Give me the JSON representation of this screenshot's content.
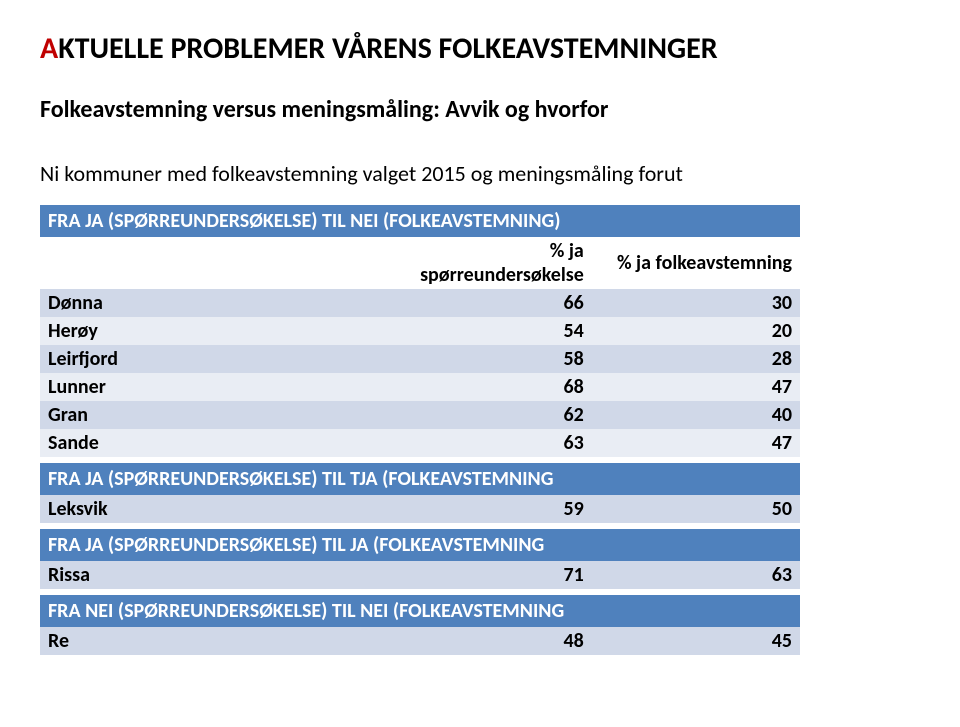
{
  "title_first_letter": "A",
  "title_rest": "KTUELLE PROBLEMER VÅRENS FOLKEAVSTEMNINGER",
  "subtitle": "Folkeavstemning versus meningsmåling: Avvik og hvorfor",
  "intro": "Ni kommuner med folkeavstemning valget 2015 og meningsmåling forut",
  "col1_label": "% ja spørreundersøkelse",
  "col2_label": "% ja folkeavstemning",
  "section1": {
    "header": "FRA JA (SPØRREUNDERSØKELSE) TIL NEI (FOLKEAVSTEMNING)",
    "rows": [
      {
        "label": "Dønna",
        "v1": "66",
        "v2": "30",
        "shade": "light"
      },
      {
        "label": "Herøy",
        "v1": "54",
        "v2": "20",
        "shade": "dark"
      },
      {
        "label": "Leirfjord",
        "v1": "58",
        "v2": "28",
        "shade": "light"
      },
      {
        "label": "Lunner",
        "v1": "68",
        "v2": "47",
        "shade": "dark"
      },
      {
        "label": "Gran",
        "v1": "62",
        "v2": "40",
        "shade": "light"
      },
      {
        "label": "Sande",
        "v1": "63",
        "v2": "47",
        "shade": "dark"
      }
    ]
  },
  "section2": {
    "header": "FRA JA (SPØRREUNDERSØKELSE) TIL TJA (FOLKEAVSTEMNING",
    "rows": [
      {
        "label": "Leksvik",
        "v1": "59",
        "v2": "50",
        "shade": "light"
      }
    ]
  },
  "section3": {
    "header": "FRA JA (SPØRREUNDERSØKELSE) TIL JA (FOLKEAVSTEMNING",
    "rows": [
      {
        "label": "Rissa",
        "v1": "71",
        "v2": "63",
        "shade": "light"
      }
    ]
  },
  "section4": {
    "header": "FRA NEI (SPØRREUNDERSØKELSE) TIL NEI (FOLKEAVSTEMNING",
    "rows": [
      {
        "label": "Re",
        "v1": "48",
        "v2": "45",
        "shade": "light"
      }
    ]
  }
}
